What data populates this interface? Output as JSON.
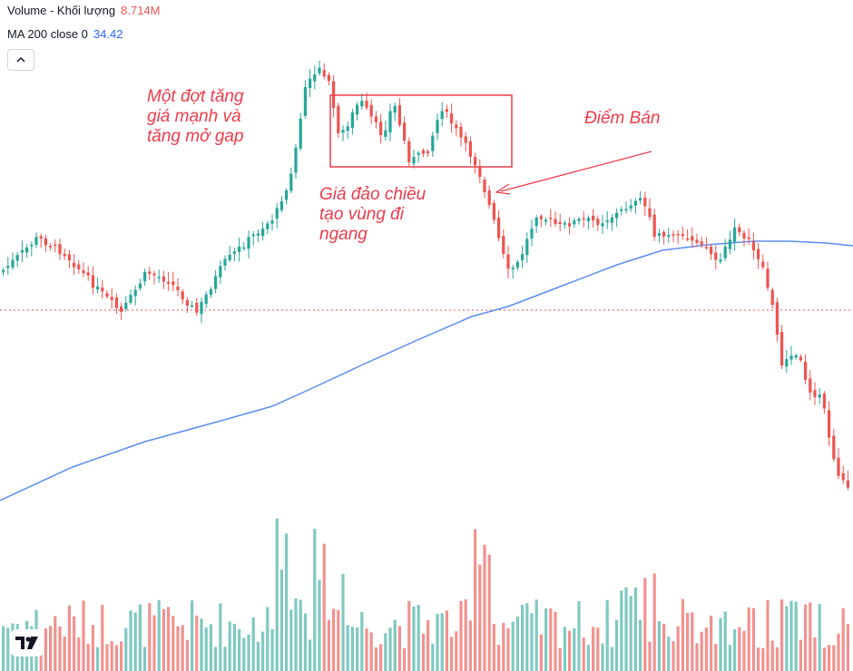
{
  "legend": {
    "volume_label": "Volume - Khối lượng",
    "volume_value": "8.714M",
    "ma_label": "MA 200 close 0",
    "ma_value": "34.42"
  },
  "annotations": {
    "surge": "Một đợt tăng\ngiá mạnh và\ntăng mở gap",
    "reversal": "Giá đảo chiều\ntạo vùng đi\nngang",
    "sell_point": "Điểm Bán"
  },
  "colors": {
    "up": "#26a69a",
    "down": "#ef5350",
    "ma_line": "#5b8def",
    "annotation": "#ef3b4a",
    "reference_line": "#ef5350"
  },
  "icons": {
    "collapse": "chevron-up-icon",
    "logo": "tradingview-logo-icon"
  },
  "chart_data": {
    "type": "candlestick",
    "series": [
      {
        "name": "Price"
      },
      {
        "name": "MA 200 close 0"
      },
      {
        "name": "Volume - Khối lượng"
      }
    ]
  }
}
